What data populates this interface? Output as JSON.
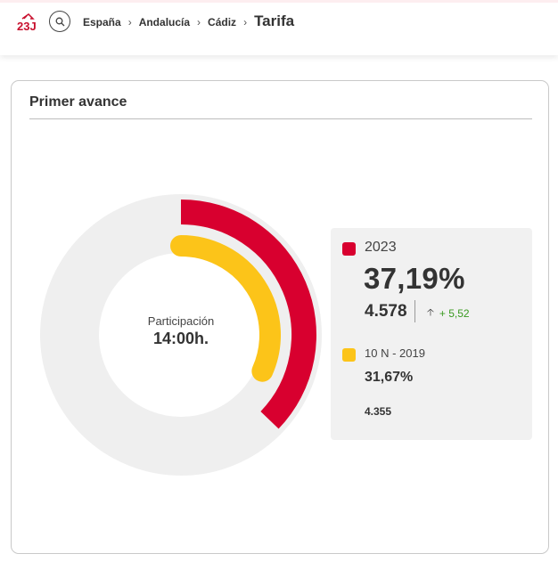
{
  "header": {
    "breadcrumb": [
      "España",
      "Andalucía",
      "Cádiz"
    ],
    "breadcrumb_separator": "›",
    "current": "Tarifa",
    "logo_icon": "23j-logo-icon",
    "search_icon": "search-icon"
  },
  "card": {
    "title": "Primer avance",
    "center_label": "Participación",
    "center_time": "14:00h."
  },
  "current": {
    "label": "2023",
    "percent": "37,19%",
    "percent_value": 37.19,
    "count": "4.578",
    "delta": "+ 5,52",
    "color": "#d8002f"
  },
  "previous": {
    "label": "10 N - 2019",
    "percent": "31,67%",
    "percent_value": 31.67,
    "count": "4.355",
    "color": "#fcc419"
  },
  "colors": {
    "track": "#efefef",
    "delta_positive": "#3a9a21",
    "brand": "#c8102e"
  }
}
